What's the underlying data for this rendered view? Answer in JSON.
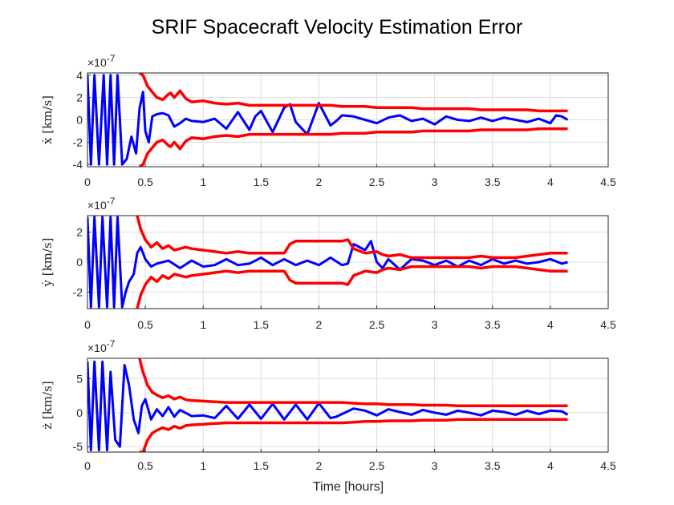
{
  "chart_data": {
    "type": "line",
    "title": "SRIF Spacecraft Velocity Estimation Error",
    "xlabel": "Time [hours]",
    "xlim": [
      0,
      4.5
    ],
    "xticks": [
      "0",
      "0.5",
      "1",
      "1.5",
      "2",
      "2.5",
      "3",
      "3.5",
      "4",
      "4.5"
    ],
    "colors": {
      "error": "#0000ff",
      "bound": "#ff0000"
    },
    "grid": true,
    "subplots": [
      {
        "ylabel": "ẋ [km/s]",
        "exponent_label": "×10",
        "exponent": "-7",
        "ylim": [
          -4.2,
          4.2
        ],
        "yticks": [
          "-4",
          "-2",
          "0",
          "2",
          "4"
        ],
        "series": [
          {
            "role": "error",
            "x": [
              0,
              0.03,
              0.06,
              0.1,
              0.14,
              0.17,
              0.2,
              0.23,
              0.26,
              0.3,
              0.34,
              0.38,
              0.42,
              0.45,
              0.48,
              0.5,
              0.53,
              0.56,
              0.6,
              0.65,
              0.7,
              0.75,
              0.8,
              0.85,
              0.9,
              1.0,
              1.1,
              1.2,
              1.3,
              1.4,
              1.45,
              1.5,
              1.6,
              1.7,
              1.75,
              1.8,
              1.9,
              2.0,
              2.1,
              2.15,
              2.2,
              2.3,
              2.4,
              2.5,
              2.6,
              2.7,
              2.8,
              2.9,
              3.0,
              3.1,
              3.2,
              3.3,
              3.4,
              3.5,
              3.6,
              3.7,
              3.8,
              3.9,
              4.0,
              4.05,
              4.1,
              4.15
            ],
            "y": [
              4,
              -4,
              4,
              -4,
              4,
              -4,
              4,
              -4,
              4,
              -4,
              -3.5,
              -1.5,
              -3,
              1,
              2.5,
              -1,
              -2,
              0.3,
              0.5,
              0.6,
              0.4,
              -0.6,
              -0.3,
              0.1,
              -0.1,
              -0.2,
              0.1,
              -0.8,
              0.7,
              -0.9,
              0.3,
              0.8,
              -1.1,
              1.1,
              1.4,
              -0.2,
              -1.3,
              1.5,
              -0.5,
              -0.1,
              0.4,
              0.3,
              0.0,
              -0.3,
              0.2,
              0.4,
              -0.1,
              0.1,
              -0.4,
              0.3,
              0.0,
              -0.1,
              0.2,
              -0.1,
              0.2,
              0.0,
              -0.2,
              0.1,
              -0.3,
              0.4,
              0.3,
              0.0
            ]
          },
          {
            "role": "bound-upper",
            "x": [
              0.45,
              0.48,
              0.52,
              0.56,
              0.6,
              0.65,
              0.7,
              0.72,
              0.75,
              0.8,
              0.85,
              0.9,
              1.0,
              1.1,
              1.2,
              1.3,
              1.4,
              1.5,
              1.6,
              1.7,
              1.8,
              1.9,
              2.0,
              2.1,
              2.2,
              2.3,
              2.4,
              2.5,
              2.6,
              2.7,
              2.8,
              2.9,
              3.0,
              3.1,
              3.2,
              3.3,
              3.4,
              3.5,
              3.6,
              3.7,
              3.8,
              3.9,
              4.0,
              4.1,
              4.15
            ],
            "y": [
              4.2,
              4.0,
              3.0,
              2.5,
              2.0,
              1.8,
              2.3,
              2.4,
              2.0,
              2.6,
              1.9,
              1.6,
              1.7,
              1.5,
              1.4,
              1.5,
              1.3,
              1.3,
              1.3,
              1.3,
              1.3,
              1.3,
              1.3,
              1.3,
              1.2,
              1.2,
              1.2,
              1.1,
              1.1,
              1.1,
              1.1,
              1.0,
              1.0,
              1.0,
              1.0,
              1.0,
              0.9,
              0.9,
              0.9,
              0.9,
              0.9,
              0.8,
              0.8,
              0.8,
              0.8
            ]
          },
          {
            "role": "bound-lower",
            "x": [
              0.45,
              0.48,
              0.52,
              0.56,
              0.6,
              0.65,
              0.7,
              0.72,
              0.75,
              0.8,
              0.85,
              0.9,
              1.0,
              1.1,
              1.2,
              1.3,
              1.4,
              1.5,
              1.6,
              1.7,
              1.8,
              1.9,
              2.0,
              2.1,
              2.2,
              2.3,
              2.4,
              2.5,
              2.6,
              2.7,
              2.8,
              2.9,
              3.0,
              3.1,
              3.2,
              3.3,
              3.4,
              3.5,
              3.6,
              3.7,
              3.8,
              3.9,
              4.0,
              4.1,
              4.15
            ],
            "y": [
              -4.2,
              -4.0,
              -3.0,
              -2.5,
              -2.0,
              -1.8,
              -2.3,
              -2.4,
              -2.0,
              -2.6,
              -1.9,
              -1.6,
              -1.7,
              -1.5,
              -1.4,
              -1.5,
              -1.3,
              -1.3,
              -1.3,
              -1.3,
              -1.3,
              -1.3,
              -1.3,
              -1.3,
              -1.2,
              -1.2,
              -1.2,
              -1.1,
              -1.1,
              -1.1,
              -1.1,
              -1.0,
              -1.0,
              -1.0,
              -1.0,
              -1.0,
              -0.9,
              -0.9,
              -0.9,
              -0.9,
              -0.9,
              -0.8,
              -0.8,
              -0.8,
              -0.8
            ]
          }
        ]
      },
      {
        "ylabel": "ẏ [km/s]",
        "exponent_label": "×10",
        "exponent": "-7",
        "ylim": [
          -3.1,
          3.1
        ],
        "yticks": [
          "-2",
          "0",
          "2"
        ],
        "series": [
          {
            "role": "error",
            "x": [
              0,
              0.03,
              0.06,
              0.1,
              0.13,
              0.17,
              0.2,
              0.23,
              0.26,
              0.3,
              0.33,
              0.36,
              0.4,
              0.43,
              0.46,
              0.5,
              0.55,
              0.6,
              0.7,
              0.8,
              0.9,
              1.0,
              1.1,
              1.2,
              1.3,
              1.4,
              1.5,
              1.6,
              1.7,
              1.8,
              1.9,
              2.0,
              2.1,
              2.2,
              2.25,
              2.3,
              2.4,
              2.45,
              2.5,
              2.55,
              2.6,
              2.7,
              2.8,
              2.9,
              3.0,
              3.1,
              3.2,
              3.3,
              3.4,
              3.5,
              3.6,
              3.7,
              3.8,
              3.9,
              4.0,
              4.1,
              4.15
            ],
            "y": [
              3,
              -3,
              3,
              -3,
              3,
              -3,
              3,
              -3,
              3,
              -3,
              -2,
              -1.3,
              -0.8,
              0.6,
              1.0,
              0.2,
              -0.3,
              -0.1,
              0.1,
              -0.4,
              0.1,
              -0.3,
              -0.2,
              0.2,
              -0.2,
              -0.1,
              0.3,
              -0.2,
              0.2,
              -0.2,
              0.1,
              -0.2,
              0.3,
              -0.2,
              -0.1,
              1.2,
              0.8,
              1.4,
              0.0,
              -0.4,
              0.2,
              -0.5,
              0.2,
              0.1,
              -0.2,
              0.1,
              -0.3,
              0.1,
              -0.2,
              0.2,
              -0.1,
              0.1,
              -0.1,
              0.0,
              0.2,
              -0.1,
              0.0
            ]
          },
          {
            "role": "bound-upper",
            "x": [
              0.43,
              0.46,
              0.5,
              0.55,
              0.6,
              0.65,
              0.7,
              0.75,
              0.8,
              0.85,
              0.9,
              1.0,
              1.1,
              1.2,
              1.3,
              1.4,
              1.5,
              1.6,
              1.7,
              1.75,
              1.8,
              1.9,
              2.0,
              2.1,
              2.2,
              2.25,
              2.3,
              2.4,
              2.5,
              2.55,
              2.6,
              2.7,
              2.8,
              2.9,
              3.0,
              3.1,
              3.2,
              3.3,
              3.4,
              3.5,
              3.6,
              3.7,
              3.8,
              3.9,
              4.0,
              4.1,
              4.15
            ],
            "y": [
              3.1,
              2.2,
              1.5,
              1.0,
              1.3,
              0.9,
              1.1,
              0.8,
              0.9,
              1.0,
              0.9,
              0.8,
              0.7,
              0.6,
              0.7,
              0.6,
              0.6,
              0.6,
              0.6,
              1.2,
              1.4,
              1.4,
              1.4,
              1.4,
              1.4,
              1.5,
              0.9,
              0.6,
              0.7,
              0.5,
              0.4,
              0.5,
              0.3,
              0.3,
              0.3,
              0.3,
              0.3,
              0.3,
              0.4,
              0.3,
              0.3,
              0.3,
              0.4,
              0.5,
              0.6,
              0.6,
              0.6
            ]
          },
          {
            "role": "bound-lower",
            "x": [
              0.43,
              0.46,
              0.5,
              0.55,
              0.6,
              0.65,
              0.7,
              0.75,
              0.8,
              0.85,
              0.9,
              1.0,
              1.1,
              1.2,
              1.3,
              1.4,
              1.5,
              1.6,
              1.7,
              1.75,
              1.8,
              1.9,
              2.0,
              2.1,
              2.2,
              2.25,
              2.3,
              2.4,
              2.5,
              2.55,
              2.6,
              2.7,
              2.8,
              2.9,
              3.0,
              3.1,
              3.2,
              3.3,
              3.4,
              3.5,
              3.6,
              3.7,
              3.8,
              3.9,
              4.0,
              4.1,
              4.15
            ],
            "y": [
              -3.1,
              -2.2,
              -1.5,
              -1.0,
              -1.3,
              -0.9,
              -1.1,
              -0.8,
              -0.9,
              -1.0,
              -0.9,
              -0.8,
              -0.7,
              -0.6,
              -0.7,
              -0.6,
              -0.6,
              -0.6,
              -0.6,
              -1.2,
              -1.4,
              -1.4,
              -1.4,
              -1.4,
              -1.4,
              -1.5,
              -0.9,
              -0.6,
              -0.7,
              -0.5,
              -0.4,
              -0.5,
              -0.3,
              -0.3,
              -0.3,
              -0.3,
              -0.3,
              -0.3,
              -0.4,
              -0.3,
              -0.3,
              -0.3,
              -0.4,
              -0.5,
              -0.6,
              -0.6,
              -0.6
            ]
          }
        ]
      },
      {
        "ylabel": "ż [km/s]",
        "exponent_label": "×10",
        "exponent": "-7",
        "ylim": [
          -5.8,
          8
        ],
        "yticks": [
          "-5",
          "0",
          "5"
        ],
        "series": [
          {
            "role": "error",
            "x": [
              0,
              0.03,
              0.06,
              0.1,
              0.13,
              0.17,
              0.2,
              0.24,
              0.28,
              0.32,
              0.36,
              0.4,
              0.44,
              0.47,
              0.5,
              0.55,
              0.6,
              0.65,
              0.7,
              0.75,
              0.8,
              0.9,
              1.0,
              1.1,
              1.2,
              1.3,
              1.4,
              1.5,
              1.6,
              1.7,
              1.8,
              1.9,
              2.0,
              2.1,
              2.15,
              2.2,
              2.3,
              2.4,
              2.5,
              2.6,
              2.7,
              2.8,
              2.9,
              3.0,
              3.1,
              3.2,
              3.3,
              3.4,
              3.5,
              3.6,
              3.7,
              3.8,
              3.9,
              4.0,
              4.1,
              4.15
            ],
            "y": [
              7.5,
              -5.5,
              7.5,
              -5.5,
              7.5,
              -5.5,
              6,
              -4,
              -5,
              7,
              4,
              -1,
              -3,
              1,
              2,
              -1,
              0.5,
              -0.5,
              0.8,
              -0.6,
              0.4,
              -0.5,
              -0.4,
              -0.8,
              1.0,
              -0.9,
              1.2,
              -0.9,
              1.3,
              -1.0,
              1.2,
              -1.0,
              1.4,
              -0.8,
              -0.6,
              -0.2,
              0.6,
              0.3,
              -0.4,
              0.5,
              0.1,
              -0.3,
              0.4,
              0.0,
              -0.3,
              0.3,
              0.0,
              -0.4,
              0.3,
              0.1,
              -0.3,
              0.3,
              -0.2,
              0.3,
              0.2,
              -0.3
            ]
          },
          {
            "role": "bound-upper",
            "x": [
              0.45,
              0.48,
              0.52,
              0.56,
              0.6,
              0.65,
              0.7,
              0.75,
              0.8,
              0.85,
              0.9,
              1.0,
              1.1,
              1.2,
              1.3,
              1.4,
              1.5,
              1.6,
              1.7,
              1.8,
              1.9,
              2.0,
              2.1,
              2.2,
              2.3,
              2.4,
              2.5,
              2.6,
              2.7,
              2.8,
              2.9,
              3.0,
              3.1,
              3.2,
              3.3,
              3.4,
              3.5,
              3.6,
              3.7,
              3.8,
              3.9,
              4.0,
              4.1,
              4.15
            ],
            "y": [
              8,
              6,
              4,
              3,
              2.6,
              2.2,
              2.5,
              2.0,
              2.3,
              1.9,
              1.8,
              1.7,
              1.6,
              1.5,
              1.5,
              1.5,
              1.5,
              1.5,
              1.5,
              1.5,
              1.5,
              1.5,
              1.5,
              1.5,
              1.4,
              1.3,
              1.3,
              1.2,
              1.2,
              1.2,
              1.1,
              1.1,
              1.1,
              1.0,
              1.0,
              1.0,
              1.0,
              1.0,
              1.0,
              1.0,
              1.0,
              1.0,
              1.0,
              1.0
            ]
          },
          {
            "role": "bound-lower",
            "x": [
              0.45,
              0.48,
              0.52,
              0.56,
              0.6,
              0.65,
              0.7,
              0.75,
              0.8,
              0.85,
              0.9,
              1.0,
              1.1,
              1.2,
              1.3,
              1.4,
              1.5,
              1.6,
              1.7,
              1.8,
              1.9,
              2.0,
              2.1,
              2.2,
              2.3,
              2.4,
              2.5,
              2.6,
              2.7,
              2.8,
              2.9,
              3.0,
              3.1,
              3.2,
              3.3,
              3.4,
              3.5,
              3.6,
              3.7,
              3.8,
              3.9,
              4.0,
              4.1,
              4.15
            ],
            "y": [
              -5.8,
              -5.8,
              -4,
              -3,
              -2.6,
              -2.2,
              -2.5,
              -2.0,
              -2.3,
              -1.9,
              -1.8,
              -1.7,
              -1.6,
              -1.5,
              -1.5,
              -1.5,
              -1.5,
              -1.5,
              -1.5,
              -1.5,
              -1.5,
              -1.5,
              -1.5,
              -1.5,
              -1.4,
              -1.3,
              -1.3,
              -1.2,
              -1.2,
              -1.2,
              -1.1,
              -1.1,
              -1.1,
              -1.0,
              -1.0,
              -1.0,
              -1.0,
              -1.0,
              -1.0,
              -1.0,
              -1.0,
              -1.0,
              -1.0,
              -1.0
            ]
          }
        ]
      }
    ]
  }
}
